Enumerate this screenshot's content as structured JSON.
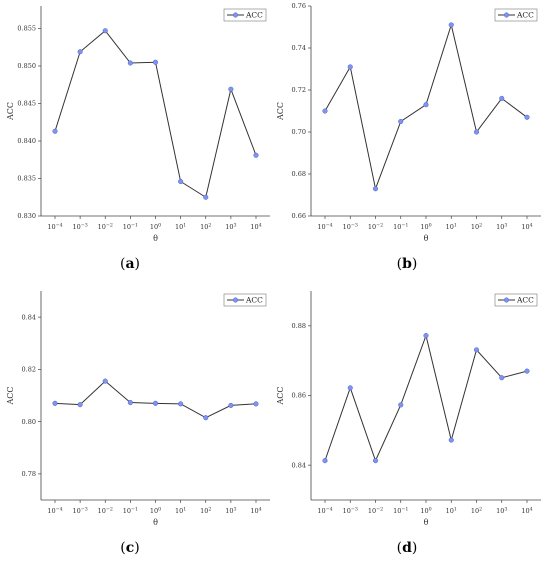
{
  "chart_data": [
    {
      "panel": "(a)",
      "type": "line",
      "categories": [
        "10^-4",
        "10^-3",
        "10^-2",
        "10^-1",
        "10^0",
        "10^1",
        "10^2",
        "10^3",
        "10^4"
      ],
      "series": [
        {
          "name": "ACC",
          "values": [
            0.8413,
            0.8519,
            0.8547,
            0.8504,
            0.8505,
            0.8346,
            0.8325,
            0.8469,
            0.8381
          ]
        }
      ],
      "xlabel": "θ",
      "ylabel": "ACC",
      "ylim": [
        0.83,
        0.858
      ],
      "yticks": [
        0.83,
        0.835,
        0.84,
        0.845,
        0.85,
        0.855
      ],
      "ytick_labels": [
        "0.830",
        "0.835",
        "0.840",
        "0.845",
        "0.850",
        "0.855"
      ],
      "legend": "top-right",
      "grid": false
    },
    {
      "panel": "(b)",
      "type": "line",
      "categories": [
        "10^-4",
        "10^-3",
        "10^-2",
        "10^-1",
        "10^0",
        "10^1",
        "10^2",
        "10^3",
        "10^4"
      ],
      "series": [
        {
          "name": "ACC",
          "values": [
            0.71,
            0.731,
            0.673,
            0.705,
            0.713,
            0.751,
            0.7,
            0.716,
            0.707
          ]
        }
      ],
      "xlabel": "θ",
      "ylabel": "ACC",
      "ylim": [
        0.66,
        0.76
      ],
      "yticks": [
        0.66,
        0.68,
        0.7,
        0.72,
        0.74,
        0.76
      ],
      "ytick_labels": [
        "0.66",
        "0.68",
        "0.70",
        "0.72",
        "0.74",
        "0.76"
      ],
      "legend": "top-right",
      "grid": false
    },
    {
      "panel": "(c)",
      "type": "line",
      "categories": [
        "10^-4",
        "10^-3",
        "10^-2",
        "10^-1",
        "10^0",
        "10^1",
        "10^2",
        "10^3",
        "10^4"
      ],
      "series": [
        {
          "name": "ACC",
          "values": [
            0.807,
            0.8065,
            0.8155,
            0.8073,
            0.807,
            0.8068,
            0.8015,
            0.8062,
            0.8068
          ]
        }
      ],
      "xlabel": "θ",
      "ylabel": "ACC",
      "ylim": [
        0.77,
        0.85
      ],
      "yticks": [
        0.78,
        0.8,
        0.82,
        0.84
      ],
      "ytick_labels": [
        "0.78",
        "0.80",
        "0.82",
        "0.84"
      ],
      "legend": "top-right",
      "grid": false
    },
    {
      "panel": "(d)",
      "type": "line",
      "categories": [
        "10^-4",
        "10^-3",
        "10^-2",
        "10^-1",
        "10^0",
        "10^1",
        "10^2",
        "10^3",
        "10^4"
      ],
      "series": [
        {
          "name": "ACC",
          "values": [
            0.8413,
            0.8622,
            0.8413,
            0.8573,
            0.8772,
            0.8472,
            0.8731,
            0.8651,
            0.867
          ]
        }
      ],
      "xlabel": "θ",
      "ylabel": "ACC",
      "ylim": [
        0.83,
        0.89
      ],
      "yticks": [
        0.84,
        0.86,
        0.88
      ],
      "ytick_labels": [
        "0.84",
        "0.86",
        "0.88"
      ],
      "legend": "top-right",
      "grid": false
    }
  ],
  "style": {
    "line_color": "#333333",
    "marker_color": "#7f93f0",
    "marker_stroke": "#4a5fcf"
  }
}
